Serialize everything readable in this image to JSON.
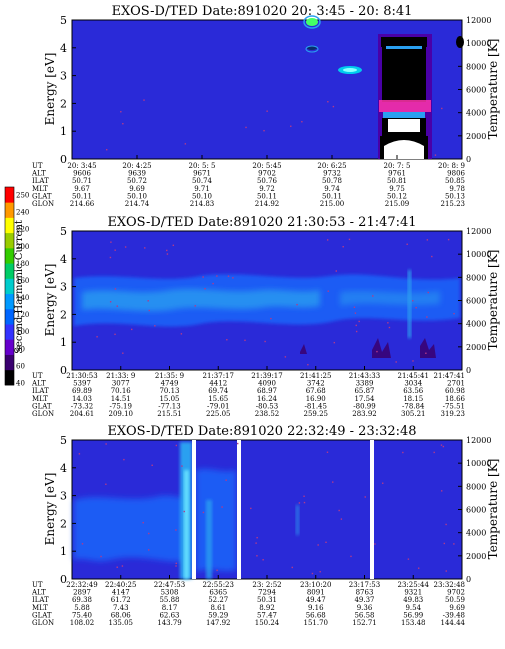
{
  "colors": {
    "background": "#2a2ad8",
    "contour_light": "#1c5cf4",
    "contour_cyan": "#2aa0f0",
    "speck": "#b23a8a",
    "colorbar_stops": [
      "#000000",
      "#3a0070",
      "#6600cc",
      "#3333ff",
      "#0066ff",
      "#0099ff",
      "#00cccc",
      "#00cc66",
      "#33cc00",
      "#99cc00",
      "#ffff00",
      "#ff9900",
      "#ff0000"
    ]
  },
  "colorbar": {
    "label": "Second Harmonic Current",
    "ticks": [
      "40",
      "60",
      "80",
      "100",
      "120",
      "140",
      "160",
      "180",
      "200",
      "220",
      "240",
      "250"
    ]
  },
  "chart_data": [
    {
      "type": "heatmap",
      "title": "EXOS-D/TED  Date:891020  20: 3:45 - 20: 8:41",
      "ylabel": "Energy [eV]",
      "y2label": "Temperature [K]",
      "ylim": [
        0,
        5
      ],
      "yticks": [
        "0",
        "1",
        "2",
        "3",
        "4",
        "5"
      ],
      "y2lim": [
        0,
        12000
      ],
      "y2ticks": [
        "0",
        "2000",
        "4000",
        "6000",
        "8000",
        "10000",
        "12000"
      ],
      "row_labels": [
        "UT",
        "ALT",
        "ILAT",
        "MLT",
        "GLAT",
        "GLON"
      ],
      "columns": [
        [
          "20: 3:45",
          "9606",
          "50.71",
          "9.67",
          "50.11",
          "214.66"
        ],
        [
          "20: 4:25",
          "9639",
          "50.72",
          "9.69",
          "50.10",
          "214.74"
        ],
        [
          "20: 5: 5",
          "9671",
          "50.74",
          "9.71",
          "50.10",
          "214.83"
        ],
        [
          "20: 5:45",
          "9702",
          "50.76",
          "9.72",
          "50.11",
          "214.92"
        ],
        [
          "20: 6:25",
          "9732",
          "50.78",
          "9.74",
          "50.11",
          "215.00"
        ],
        [
          "20: 7: 5",
          "9761",
          "50.81",
          "9.75",
          "50.12",
          "215.09"
        ],
        [
          "20: 8: 9",
          "9806",
          "50.85",
          "9.78",
          "50.13",
          "215.23"
        ]
      ]
    },
    {
      "type": "heatmap",
      "title": "EXOS-D/TED  Date:891020  21:30:53 - 21:47:41",
      "ylabel": "Energy [eV]",
      "y2label": "Temperature [K]",
      "ylim": [
        0,
        5
      ],
      "yticks": [
        "0",
        "1",
        "2",
        "3",
        "4",
        "5"
      ],
      "y2lim": [
        0,
        12000
      ],
      "y2ticks": [
        "0",
        "2000",
        "4000",
        "6000",
        "8000",
        "10000",
        "12000"
      ],
      "row_labels": [
        "UT",
        "ALT",
        "ILAT",
        "MLT",
        "GLAT",
        "GLON"
      ],
      "columns": [
        [
          "21:30:53",
          "5397",
          "69.89",
          "14.03",
          "-73.32",
          "204.61"
        ],
        [
          "21:33: 9",
          "3077",
          "70.16",
          "14.51",
          "-75.19",
          "209.10"
        ],
        [
          "21:35: 9",
          "4749",
          "70.13",
          "15.05",
          "-77.13",
          "215.51"
        ],
        [
          "21:37:17",
          "4412",
          "69.74",
          "15.65",
          "-79.01",
          "225.05"
        ],
        [
          "21:39:17",
          "4090",
          "68.97",
          "16.24",
          "-80.53",
          "238.52"
        ],
        [
          "21:41:25",
          "3742",
          "67.68",
          "16.90",
          "-81.45",
          "259.25"
        ],
        [
          "21:43:33",
          "3389",
          "65.87",
          "17.54",
          "-80.99",
          "283.92"
        ],
        [
          "21:45:41",
          "3034",
          "63.56",
          "18.15",
          "-78.84",
          "305.21"
        ],
        [
          "21:47:41",
          "2701",
          "60.98",
          "18.66",
          "-75.51",
          "319.23"
        ]
      ]
    },
    {
      "type": "heatmap",
      "title": "EXOS-D/TED  Date:891020  22:32:49 - 23:32:48",
      "ylabel": "Energy [eV]",
      "y2label": "Temperature [K]",
      "ylim": [
        0,
        5
      ],
      "yticks": [
        "0",
        "1",
        "2",
        "3",
        "4",
        "5"
      ],
      "y2lim": [
        0,
        12000
      ],
      "y2ticks": [
        "0",
        "2000",
        "4000",
        "6000",
        "8000",
        "10000",
        "12000"
      ],
      "row_labels": [
        "UT",
        "ALT",
        "ILAT",
        "MLT",
        "GLAT",
        "GLON"
      ],
      "columns": [
        [
          "22:32:49",
          "2897",
          "69.38",
          "5.88",
          "75.40",
          "108.02"
        ],
        [
          "22:40:25",
          "4147",
          "61.72",
          "7.43",
          "68.06",
          "135.05"
        ],
        [
          "22:47:53",
          "5308",
          "55.88",
          "8.17",
          "62.63",
          "143.79"
        ],
        [
          "22:55:23",
          "6365",
          "52.27",
          "8.61",
          "59.29",
          "147.92"
        ],
        [
          "23: 2:52",
          "7294",
          "50.31",
          "8.92",
          "57.47",
          "150.24"
        ],
        [
          "23:10:20",
          "8091",
          "49.47",
          "9.16",
          "56.68",
          "151.70"
        ],
        [
          "23:17:53",
          "8763",
          "49.37",
          "9.36",
          "56.58",
          "152.71"
        ],
        [
          "23:25:44",
          "9321",
          "49.83",
          "9.54",
          "56.99",
          "153.48"
        ],
        [
          "23:32:48",
          "9702",
          "50.59",
          "9.69",
          "-39.48",
          "144.44"
        ]
      ]
    }
  ]
}
